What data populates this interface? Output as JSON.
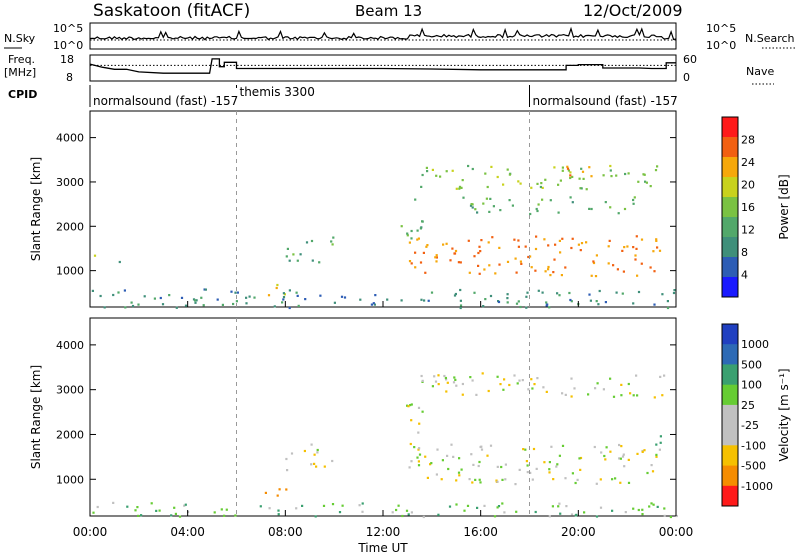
{
  "header": {
    "station": "Saskatoon (fitACF)",
    "beam": "Beam 13",
    "date": "12/Oct/2009"
  },
  "side_labels": {
    "nsky": "N.Sky",
    "freq": "Freq.",
    "freq_unit": "[MHz]",
    "cpid": "CPID",
    "nsearch": "N.Search",
    "nave": "Nave"
  },
  "cpid_segments": [
    {
      "label": "normalsound (fast) -157",
      "start_hour": 0
    },
    {
      "label": "themis 3300",
      "start_hour": 6.0
    },
    {
      "label": "normalsound (fast) -157",
      "start_hour": 18.0
    }
  ],
  "noise_panel": {
    "left_ticks": [
      "10^5",
      "10^0"
    ],
    "right_ticks": [
      "10^5",
      "10^0"
    ]
  },
  "freq_panel": {
    "left_ticks": [
      "18",
      "8"
    ],
    "right_ticks": [
      "60",
      "0"
    ],
    "freq_series_mhz": [
      [
        0,
        14.5
      ],
      [
        0.5,
        13.3
      ],
      [
        1.0,
        12.5
      ],
      [
        1.5,
        12.5
      ],
      [
        2.0,
        11.5
      ],
      [
        3.0,
        11.0
      ],
      [
        4.0,
        11.0
      ],
      [
        4.9,
        11.0
      ],
      [
        5.0,
        16.5
      ],
      [
        5.3,
        16.5
      ],
      [
        5.3,
        13.5
      ],
      [
        5.5,
        13.5
      ],
      [
        5.5,
        15.2
      ],
      [
        6.0,
        15.2
      ],
      [
        6.0,
        12.8
      ],
      [
        12.0,
        12.8
      ],
      [
        14.0,
        12.6
      ],
      [
        16.0,
        12.3
      ],
      [
        18.0,
        12.3
      ],
      [
        19.5,
        12.3
      ],
      [
        19.5,
        14.0
      ],
      [
        20.0,
        14.0
      ],
      [
        20.0,
        14.3
      ],
      [
        21.0,
        14.3
      ],
      [
        21.0,
        13.0
      ],
      [
        22.5,
        13.0
      ],
      [
        23.0,
        12.8
      ],
      [
        23.6,
        12.8
      ],
      [
        23.6,
        15.0
      ],
      [
        24,
        15.0
      ]
    ],
    "nave_level": 14
  },
  "chart_data": [
    {
      "type": "heatmap",
      "name": "power",
      "ylabel": "Slant Range [km]",
      "colorbar_label": "Power [dB]",
      "colorbar_ticks": [
        "28",
        "24",
        "20",
        "16",
        "12",
        "8",
        "4"
      ],
      "colorbar_values": [
        28,
        24,
        20,
        16,
        12,
        8,
        4
      ],
      "xlim": [
        0,
        24
      ],
      "ylim": [
        180,
        4600
      ],
      "yticks": [
        1000,
        2000,
        3000,
        4000
      ],
      "ytick_labels": [
        "1000",
        "2000",
        "3000",
        "4000"
      ],
      "regions": [
        {
          "t0": 13.0,
          "t1": 23.5,
          "r0": 900,
          "r1": 1800,
          "value": 26
        },
        {
          "t0": 12.7,
          "t1": 13.6,
          "r0": 1700,
          "r1": 2800,
          "value": 12
        },
        {
          "t0": 13.3,
          "t1": 23.5,
          "r0": 2850,
          "r1": 3400,
          "value": 16
        },
        {
          "t0": 19.5,
          "t1": 20.6,
          "r0": 2900,
          "r1": 3400,
          "value": 26
        },
        {
          "t0": 15.0,
          "t1": 22.5,
          "r0": 2300,
          "r1": 2700,
          "value": 12
        },
        {
          "t0": 8.0,
          "t1": 10.0,
          "r0": 1200,
          "r1": 1800,
          "value": 12
        },
        {
          "t0": 7.2,
          "t1": 8.0,
          "r0": 400,
          "r1": 900,
          "value": 22
        },
        {
          "t0": 0.0,
          "t1": 0.3,
          "r0": 1100,
          "r1": 1500,
          "value": 22
        },
        {
          "t0": 0.9,
          "t1": 1.2,
          "r0": 900,
          "r1": 1300,
          "value": 8
        },
        {
          "t0": 0.0,
          "t1": 24.0,
          "r0": 180,
          "r1": 600,
          "value": 8
        }
      ]
    },
    {
      "type": "heatmap",
      "name": "velocity",
      "ylabel": "Slant Range [km]",
      "colorbar_label": "Velocity [m s⁻¹]",
      "colorbar_ticks": [
        "1000",
        "500",
        "100",
        "25",
        "-25",
        "-100",
        "-500",
        "-1000"
      ],
      "colorbar_values": [
        1000,
        500,
        100,
        25,
        -25,
        -100,
        -500,
        -1000
      ],
      "xlim": [
        0,
        24
      ],
      "ylim": [
        180,
        4600
      ],
      "yticks": [
        1000,
        2000,
        3000,
        4000
      ],
      "ytick_labels": [
        "1000",
        "2000",
        "3000",
        "4000"
      ],
      "xlabel": "Time UT",
      "xticks": [
        0,
        4,
        8,
        12,
        16,
        20,
        24
      ],
      "xtick_labels": [
        "00:00",
        "04:00",
        "08:00",
        "12:00",
        "16:00",
        "20:00",
        "00:00"
      ],
      "regions": [
        {
          "t0": 13.0,
          "t1": 23.5,
          "r0": 900,
          "r1": 1800,
          "value": 0
        },
        {
          "t0": 12.7,
          "t1": 13.6,
          "r0": 1700,
          "r1": 2800,
          "value": 0
        },
        {
          "t0": 13.3,
          "t1": 23.5,
          "r0": 2850,
          "r1": 3400,
          "value": 0
        },
        {
          "t0": 8.0,
          "t1": 10.0,
          "r0": 1200,
          "r1": 1800,
          "value": 0
        },
        {
          "t0": 7.0,
          "t1": 8.0,
          "r0": 500,
          "r1": 900,
          "value": -300
        },
        {
          "t0": 0.0,
          "t1": 24.0,
          "r0": 180,
          "r1": 500,
          "value": 60
        },
        {
          "t0": 22.8,
          "t1": 23.5,
          "r0": 1700,
          "r1": 2100,
          "value": 150
        }
      ]
    }
  ]
}
